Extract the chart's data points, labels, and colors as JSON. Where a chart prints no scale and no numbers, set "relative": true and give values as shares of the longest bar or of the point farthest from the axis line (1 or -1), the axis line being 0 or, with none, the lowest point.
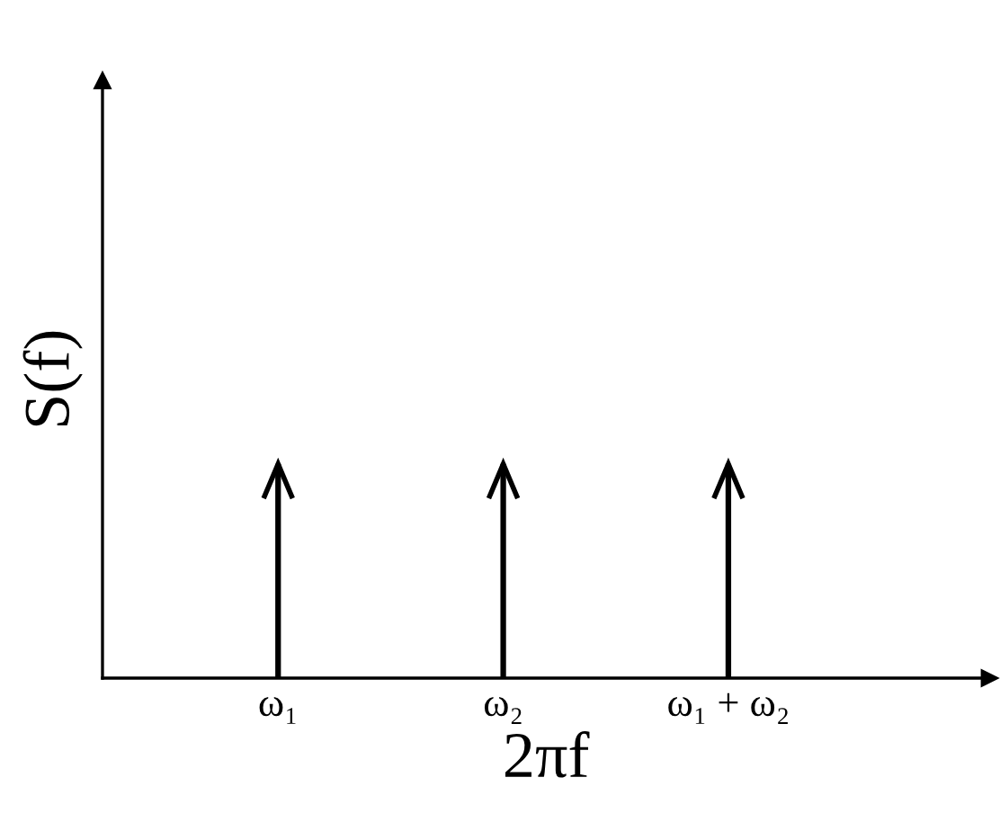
{
  "chart_data": {
    "type": "bar",
    "relative": true,
    "xlabel": "2πf",
    "ylabel": "S(f)",
    "categories": [
      "ω₁",
      "ω₂",
      "ω₁ + ω₂"
    ],
    "values": [
      1,
      1,
      1
    ],
    "color": "#000000",
    "grid": false,
    "legend": false
  }
}
